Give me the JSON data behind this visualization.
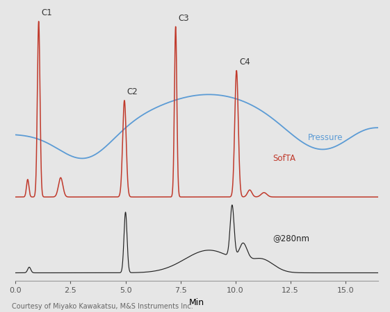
{
  "background_color": "#e6e6e6",
  "plot_bg_color": "#e6e6e6",
  "xlim": [
    0,
    16.5
  ],
  "xlabel": "Min",
  "xlabel_fontsize": 9,
  "xticks": [
    0.0,
    2.5,
    5.0,
    7.5,
    10.0,
    12.5,
    15.0
  ],
  "xtick_labels": [
    "0.0",
    "2.5",
    "5.0",
    "7.5",
    "10.0",
    "12.5",
    "15.0"
  ],
  "pressure_color": "#5b9bd5",
  "softa_color": "#c0392b",
  "uv_color": "#222222",
  "pressure_label": "Pressure",
  "softa_label": "SofTA",
  "uv_label": "@280nm",
  "footer_text": "Courtesy of Miyako Kawakatsu, M&S Instruments Inc.",
  "footer_fontsize": 7,
  "label_fontsize": 8.5,
  "peak_label_fontsize": 8.5
}
